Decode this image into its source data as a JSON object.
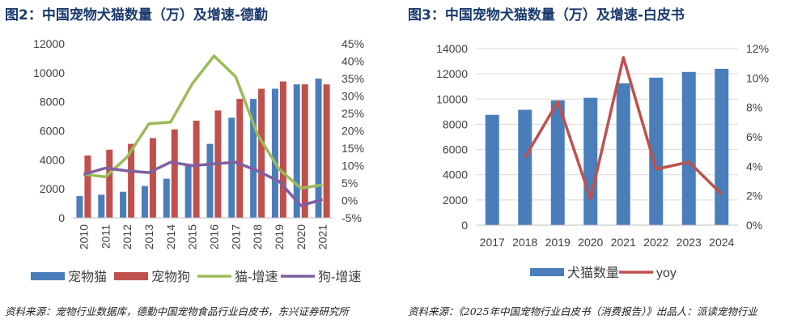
{
  "chart_data": [
    {
      "type": "bar",
      "title": "图2：中国宠物犬猫数量（万）及增速-德勤",
      "source": "资料来源：宠物行业数据库，德勤中国宠物食品行业白皮书，东兴证券研究所",
      "categories": [
        "2010",
        "2011",
        "2012",
        "2013",
        "2014",
        "2015",
        "2016",
        "2017",
        "2018",
        "2019",
        "2020",
        "2021"
      ],
      "ylim": [
        0,
        12000
      ],
      "y2lim": [
        -5,
        45
      ],
      "yticks": [
        "0",
        "2000",
        "4000",
        "6000",
        "8000",
        "10000",
        "12000"
      ],
      "y2ticks": [
        "-5%",
        "0%",
        "5%",
        "10%",
        "15%",
        "20%",
        "25%",
        "30%",
        "35%",
        "40%",
        "45%"
      ],
      "series": [
        {
          "name": "宠物猫",
          "type": "bar",
          "axis": "left",
          "color": "#4a7ebb",
          "values": [
            1500,
            1600,
            1800,
            2200,
            2700,
            3600,
            5100,
            6900,
            8200,
            8900,
            9200,
            9600
          ]
        },
        {
          "name": "宠物狗",
          "type": "bar",
          "axis": "left",
          "color": "#c0504d",
          "values": [
            4300,
            4700,
            5100,
            5500,
            6100,
            6700,
            7400,
            8200,
            8900,
            9400,
            9200,
            9200
          ]
        },
        {
          "name": "猫-增速",
          "type": "line",
          "axis": "right",
          "color": "#9bbb59",
          "values": [
            7.5,
            6.8,
            12.5,
            22,
            22.5,
            33.5,
            41.5,
            35.5,
            19,
            9,
            3.5,
            4.5
          ]
        },
        {
          "name": "狗-增速",
          "type": "line",
          "axis": "right",
          "color": "#7f5fa1",
          "values": [
            7.5,
            9.3,
            8.5,
            8,
            11,
            10,
            10.5,
            11,
            8.5,
            5.5,
            -1.5,
            0.3
          ]
        }
      ]
    },
    {
      "type": "bar",
      "title": "图3：中国宠物犬猫数量（万）及增速-白皮书",
      "source": "资料来源：《2025年中国宠物行业白皮书（消费报告）》出品人：派读宠物行业",
      "categories": [
        "2017",
        "2018",
        "2019",
        "2020",
        "2021",
        "2022",
        "2023",
        "2024"
      ],
      "ylim": [
        0,
        14000
      ],
      "y2lim": [
        0,
        12
      ],
      "yticks": [
        "0",
        "2000",
        "4000",
        "6000",
        "8000",
        "10000",
        "12000",
        "14000"
      ],
      "y2ticks": [
        "0%",
        "2%",
        "4%",
        "6%",
        "8%",
        "10%",
        "12%"
      ],
      "series": [
        {
          "name": "犬猫数量",
          "type": "bar",
          "axis": "left",
          "color": "#4a7ebb",
          "values": [
            8750,
            9150,
            9900,
            10100,
            11250,
            11700,
            12150,
            12400
          ]
        },
        {
          "name": "yoy",
          "type": "line",
          "axis": "right",
          "color": "#c0504d",
          "values": [
            null,
            4.6,
            8.4,
            1.8,
            11.4,
            3.8,
            4.3,
            2.1
          ]
        }
      ]
    }
  ]
}
